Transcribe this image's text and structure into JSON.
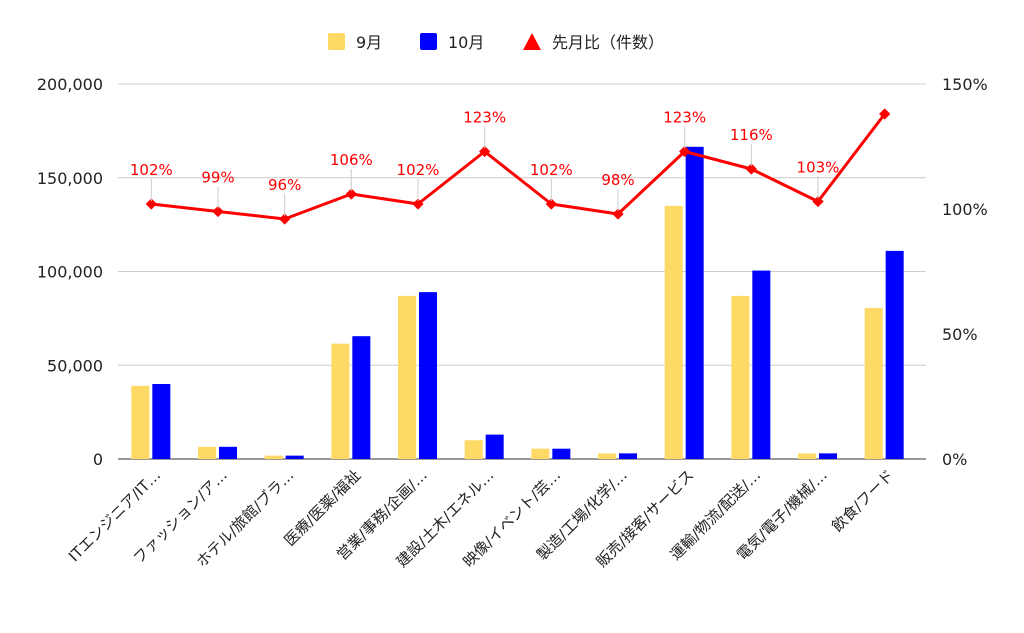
{
  "chart_data": {
    "type": "bar",
    "categories": [
      "ITエンジニア/IT…",
      "ファッション/ア…",
      "ホテル/旅館/ブラ…",
      "医療/医薬/福祉",
      "営業/事務/企画/…",
      "建設/土木/エネル…",
      "映像/イベント/芸…",
      "製造/工場/化学/…",
      "販売/接客/サービス",
      "運輸/物流/配送/…",
      "電気/電子/機械/…",
      "飲食/フード"
    ],
    "series": [
      {
        "name": "9月",
        "kind": "bar",
        "axis": "left",
        "color": "#ffd966",
        "values": [
          39000,
          6500,
          1800,
          61500,
          87000,
          10000,
          5500,
          3000,
          135000,
          87000,
          3000,
          80500
        ]
      },
      {
        "name": "10月",
        "kind": "bar",
        "axis": "left",
        "color": "#0000ff",
        "values": [
          40000,
          6500,
          1800,
          65500,
          89000,
          13000,
          5500,
          3000,
          166500,
          100500,
          3000,
          111000
        ]
      },
      {
        "name": "先月比（件数）",
        "kind": "line",
        "axis": "right",
        "color": "#ff0000",
        "values": [
          102,
          99,
          96,
          106,
          102,
          123,
          102,
          98,
          123,
          116,
          103,
          138
        ],
        "labels": [
          "102%",
          "99%",
          "96%",
          "106%",
          "102%",
          "123%",
          "102%",
          "98%",
          "123%",
          "116%",
          "103%",
          ""
        ]
      }
    ],
    "left_axis": {
      "min": 0,
      "max": 200000,
      "ticks": [
        "0",
        "50,000",
        "100,000",
        "150,000",
        "200,000"
      ]
    },
    "right_axis": {
      "min": 0,
      "max": 150,
      "ticks": [
        "0%",
        "50%",
        "100%",
        "150%"
      ]
    },
    "legend_position": "top-center",
    "grid": true
  }
}
